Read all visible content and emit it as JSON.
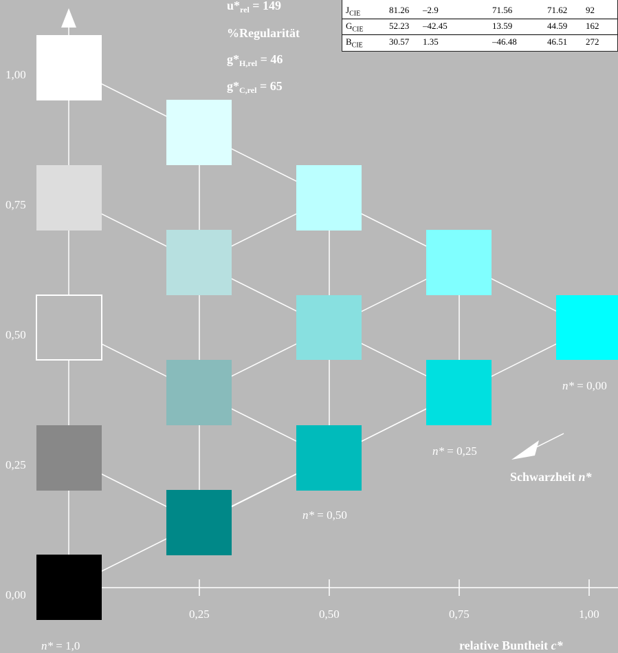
{
  "title_lines": [
    "u*rel = 149",
    "%Regularität",
    "g*H,rel = 46",
    "g*C,rel = 65"
  ],
  "header": {
    "u": {
      "main": "u*",
      "sub": "rel",
      "value": " = 149"
    },
    "regularity": "%Regularität",
    "gh": {
      "main": "g*",
      "sub": "H,rel",
      "value": " = 46"
    },
    "gc": {
      "main": "g*",
      "sub": "C,rel",
      "value": " = 65"
    }
  },
  "table": {
    "rows": [
      {
        "label": "J",
        "label_sub": "CIE",
        "values": [
          "81.26",
          "–2.9",
          "71.56",
          "71.62",
          "92"
        ]
      },
      {
        "label": "G",
        "label_sub": "CIE",
        "values": [
          "52.23",
          "–42.45",
          "13.59",
          "44.59",
          "162"
        ]
      },
      {
        "label": "B",
        "label_sub": "CIE",
        "values": [
          "30.57",
          "1.35",
          "–46.48",
          "46.51",
          "272"
        ]
      }
    ]
  },
  "axes": {
    "y_ticks": [
      "0,00",
      "0,25",
      "0,50",
      "0,75",
      "1,00"
    ],
    "x_ticks": [
      "0,25",
      "0,50",
      "0,75",
      "1,00"
    ],
    "x_title": "relative Buntheit c*",
    "x_title_main": "relative Buntheit ",
    "x_title_var": "c*",
    "blackness_title_main": "Schwarzheit ",
    "blackness_title_var": "n*"
  },
  "n_labels": [
    {
      "var": "n*",
      "text": " = 1,0"
    },
    {
      "var": "n*",
      "text": " = 0,50"
    },
    {
      "var": "n*",
      "text": " = 0,25"
    },
    {
      "var": "n*",
      "text": " = 0,00"
    }
  ],
  "colors": {
    "background": "#b9b9b9",
    "white": "#ffffff",
    "cyan_full": "#00ffff",
    "patches": [
      {
        "id": "w100",
        "color": "#ffffff"
      },
      {
        "id": "w75",
        "color": "#dddddd"
      },
      {
        "id": "w50",
        "color": "#b9b9b9",
        "outlined": true
      },
      {
        "id": "w25",
        "color": "#888888"
      },
      {
        "id": "w00",
        "color": "#000000"
      },
      {
        "id": "c25_top",
        "color": "#ddffff"
      },
      {
        "id": "c25_2",
        "color": "#b7e0e0"
      },
      {
        "id": "c25_3",
        "color": "#88bbbb"
      },
      {
        "id": "c25_4",
        "color": "#008888"
      },
      {
        "id": "c50_top",
        "color": "#bbffff"
      },
      {
        "id": "c50_2",
        "color": "#88e0e0"
      },
      {
        "id": "c50_3",
        "color": "#00bbbb"
      },
      {
        "id": "c75_top",
        "color": "#80ffff"
      },
      {
        "id": "c75_2",
        "color": "#00e0e0"
      },
      {
        "id": "c100",
        "color": "#00ffff"
      }
    ]
  }
}
